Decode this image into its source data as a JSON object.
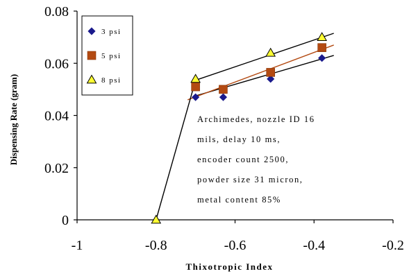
{
  "chart_data": {
    "type": "scatter",
    "xlabel": "Thixotropic Index",
    "ylabel": "Dispensing Rate (gram)",
    "xlim": [
      -1,
      -0.2
    ],
    "ylim": [
      0,
      0.08
    ],
    "xticks": [
      -1,
      -0.8,
      -0.6,
      -0.4,
      -0.2
    ],
    "xtick_labels": [
      "-1",
      "-0.8",
      "-0.6",
      "-0.4",
      "-0.2"
    ],
    "yticks": [
      0,
      0.02,
      0.04,
      0.06,
      0.08
    ],
    "ytick_labels": [
      "0",
      "0.02",
      "0.04",
      "0.06",
      "0.08"
    ],
    "grid": false,
    "legend_position": "top-left",
    "series": [
      {
        "name": "3 psi",
        "marker": "diamond",
        "color": "#1a1a8c",
        "points": [
          [
            -0.7,
            0.047
          ],
          [
            -0.63,
            0.047
          ],
          [
            -0.51,
            0.054
          ],
          [
            -0.38,
            0.062
          ]
        ],
        "trendline": [
          [
            -0.7,
            0.0475
          ],
          [
            -0.35,
            0.063
          ]
        ]
      },
      {
        "name": "5 psi",
        "marker": "square",
        "color": "#b34a12",
        "points": [
          [
            -0.7,
            0.051
          ],
          [
            -0.63,
            0.05
          ],
          [
            -0.51,
            0.0565
          ],
          [
            -0.38,
            0.066
          ]
        ],
        "trendline": [
          [
            -0.72,
            0.046
          ],
          [
            -0.35,
            0.067
          ]
        ]
      },
      {
        "name": "8 psi",
        "marker": "triangle",
        "color": "#ffff33",
        "points": [
          [
            -0.8,
            0.0
          ],
          [
            -0.7,
            0.054
          ],
          [
            -0.51,
            0.064
          ],
          [
            -0.38,
            0.07
          ]
        ],
        "trendline": [
          [
            -0.7,
            0.0535
          ],
          [
            -0.35,
            0.0715
          ]
        ]
      }
    ],
    "extra_lines": [
      [
        [
          -0.8,
          0.0
        ],
        [
          -0.7,
          0.0535
        ]
      ]
    ],
    "annotation": [
      "Archimedes, nozzle ID 16",
      "mils, delay 10 ms,",
      "encoder count 2500,",
      "powder size 31 micron,",
      "metal content 85%"
    ]
  }
}
